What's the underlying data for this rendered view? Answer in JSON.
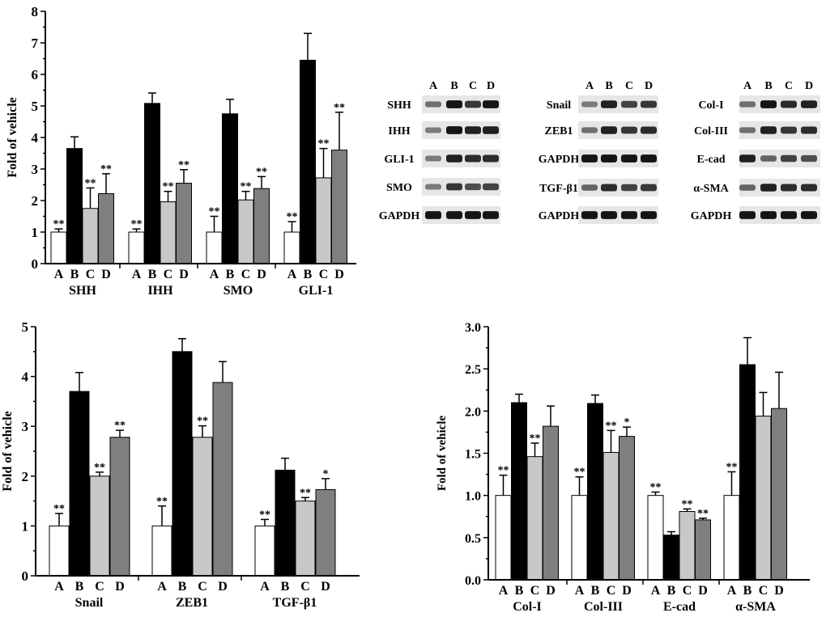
{
  "figure": {
    "group_letters": [
      "A",
      "B",
      "C",
      "D"
    ],
    "bar_colors": [
      "#ffffff",
      "#000000",
      "#c8c8c8",
      "#7f7f7f"
    ],
    "ylabel": "Fold of vehicle"
  },
  "chart_data": [
    {
      "id": "panel1",
      "type": "bar",
      "title": "",
      "xlabel": "",
      "ylabel": "Fold of vehicle",
      "ylim": [
        0,
        8
      ],
      "yticks": [
        "0",
        "1",
        "2",
        "3",
        "4",
        "5",
        "6",
        "7",
        "8"
      ],
      "groups": [
        {
          "name": "SHH",
          "values": [
            1.0,
            3.65,
            1.75,
            2.22
          ],
          "errors": [
            0.1,
            0.37,
            0.65,
            0.63
          ],
          "stars": [
            "**",
            "",
            "**",
            "**"
          ]
        },
        {
          "name": "IHH",
          "values": [
            1.0,
            5.08,
            1.96,
            2.55
          ],
          "errors": [
            0.1,
            0.33,
            0.33,
            0.43
          ],
          "stars": [
            "**",
            "",
            "**",
            "**"
          ]
        },
        {
          "name": "SMO",
          "values": [
            1.0,
            4.75,
            2.02,
            2.38
          ],
          "errors": [
            0.5,
            0.46,
            0.27,
            0.38
          ],
          "stars": [
            "**",
            "",
            "**",
            "**"
          ]
        },
        {
          "name": "GLI-1",
          "values": [
            1.0,
            6.45,
            2.72,
            3.6
          ],
          "errors": [
            0.33,
            0.85,
            0.93,
            1.2
          ],
          "stars": [
            "**",
            "",
            "**",
            "**"
          ]
        }
      ]
    },
    {
      "id": "panel2",
      "type": "bar",
      "title": "",
      "xlabel": "",
      "ylabel": "Fold of vehicle",
      "ylim": [
        0,
        5
      ],
      "yticks": [
        "0",
        "1",
        "2",
        "3",
        "4",
        "5"
      ],
      "groups": [
        {
          "name": "Snail",
          "values": [
            1.0,
            3.7,
            2.0,
            2.78
          ],
          "errors": [
            0.25,
            0.38,
            0.08,
            0.14
          ],
          "stars": [
            "**",
            "",
            "**",
            "**"
          ]
        },
        {
          "name": "ZEB1",
          "values": [
            1.0,
            4.5,
            2.78,
            3.88
          ],
          "errors": [
            0.4,
            0.26,
            0.23,
            0.42
          ],
          "stars": [
            "**",
            "",
            "**",
            ""
          ]
        },
        {
          "name": "TGF-β1",
          "values": [
            1.0,
            2.12,
            1.5,
            1.73
          ],
          "errors": [
            0.13,
            0.24,
            0.07,
            0.22
          ],
          "stars": [
            "**",
            "",
            "**",
            "*"
          ]
        }
      ]
    },
    {
      "id": "panel3",
      "type": "bar",
      "title": "",
      "xlabel": "",
      "ylabel": "Fold of vehicle",
      "ylim": [
        0,
        3.0
      ],
      "yticks": [
        "0.0",
        "0.5",
        "1.0",
        "1.5",
        "2.0",
        "2.5",
        "3.0"
      ],
      "groups": [
        {
          "name": "Col-I",
          "values": [
            1.0,
            2.1,
            1.46,
            1.82
          ],
          "errors": [
            0.24,
            0.1,
            0.16,
            0.24
          ],
          "stars": [
            "**",
            "",
            "**",
            ""
          ]
        },
        {
          "name": "Col-III",
          "values": [
            1.0,
            2.09,
            1.51,
            1.7
          ],
          "errors": [
            0.22,
            0.1,
            0.26,
            0.11
          ],
          "stars": [
            "**",
            "",
            "**",
            "*"
          ]
        },
        {
          "name": "E-cad",
          "values": [
            1.0,
            0.53,
            0.81,
            0.71
          ],
          "errors": [
            0.04,
            0.04,
            0.03,
            0.02
          ],
          "stars": [
            "**",
            "",
            "**",
            "**"
          ]
        },
        {
          "name": "α-SMA",
          "values": [
            1.0,
            2.55,
            1.94,
            2.03
          ],
          "errors": [
            0.28,
            0.32,
            0.28,
            0.43
          ],
          "stars": [
            "**",
            "",
            "",
            ""
          ]
        }
      ]
    }
  ],
  "blots": [
    {
      "id": "blot1",
      "header": [
        "A",
        "B",
        "C",
        "D"
      ],
      "rows": [
        {
          "label": "SHH",
          "bands": [
            0.55,
            0.95,
            0.8,
            0.95
          ]
        },
        {
          "label": "IHH",
          "bands": [
            0.5,
            0.95,
            0.9,
            0.9
          ]
        },
        {
          "label": "GLI-1",
          "bands": [
            0.5,
            0.9,
            0.85,
            0.85
          ]
        },
        {
          "label": "SMO",
          "bands": [
            0.5,
            0.8,
            0.7,
            0.75
          ]
        },
        {
          "label": "GAPDH",
          "bands": [
            0.95,
            0.95,
            0.95,
            0.95
          ]
        }
      ]
    },
    {
      "id": "blot2",
      "header": [
        "A",
        "B",
        "C",
        "D"
      ],
      "rows": [
        {
          "label": "Snail",
          "bands": [
            0.5,
            0.9,
            0.75,
            0.8
          ]
        },
        {
          "label": "ZEB1",
          "bands": [
            0.55,
            0.9,
            0.8,
            0.85
          ]
        },
        {
          "label": "GAPDH",
          "bands": [
            0.95,
            0.95,
            0.95,
            0.95
          ]
        },
        {
          "label": "TGF-β1",
          "bands": [
            0.6,
            0.85,
            0.75,
            0.8
          ]
        },
        {
          "label": "GAPDH",
          "bands": [
            0.95,
            0.95,
            0.95,
            0.95
          ]
        }
      ]
    },
    {
      "id": "blot3",
      "header": [
        "A",
        "B",
        "C",
        "D"
      ],
      "rows": [
        {
          "label": "Col-I",
          "bands": [
            0.55,
            0.95,
            0.85,
            0.9
          ]
        },
        {
          "label": "Col-III",
          "bands": [
            0.55,
            0.9,
            0.8,
            0.85
          ]
        },
        {
          "label": "E-cad",
          "bands": [
            0.9,
            0.6,
            0.75,
            0.7
          ]
        },
        {
          "label": "α-SMA",
          "bands": [
            0.6,
            0.9,
            0.85,
            0.85
          ]
        },
        {
          "label": "GAPDH",
          "bands": [
            0.95,
            0.95,
            0.95,
            0.95
          ]
        }
      ]
    }
  ]
}
